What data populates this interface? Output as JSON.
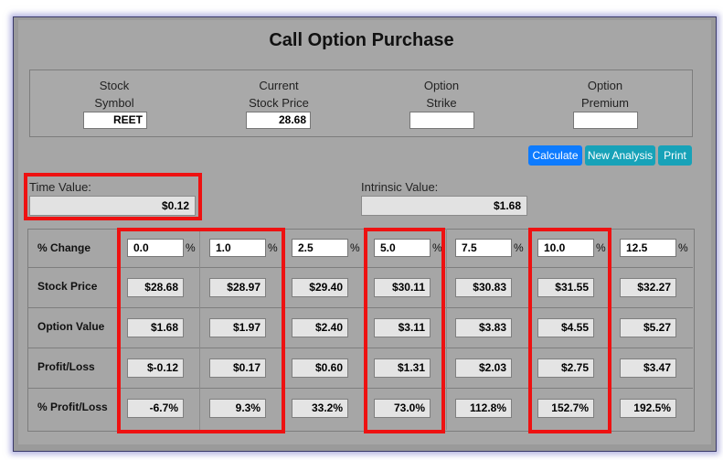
{
  "title": "Call Option Purchase",
  "inputs": {
    "stock_symbol_label_1": "Stock",
    "stock_symbol_label_2": "Symbol",
    "stock_symbol_value": "REET",
    "current_price_label_1": "Current",
    "current_price_label_2": "Stock Price",
    "current_price_value": "28.68",
    "strike_label_1": "Option",
    "strike_label_2": "Strike",
    "strike_value": "",
    "premium_label_1": "Option",
    "premium_label_2": "Premium",
    "premium_value": ""
  },
  "buttons": {
    "calculate": "Calculate",
    "new_analysis": "New Analysis",
    "print": "Print"
  },
  "time_value": {
    "label": "Time Value:",
    "value": "$0.12"
  },
  "intrinsic_value": {
    "label": "Intrinsic Value:",
    "value": "$1.68"
  },
  "table": {
    "row_labels": [
      "% Change",
      "Stock Price",
      "Option Value",
      "Profit/Loss",
      "% Profit/Loss"
    ],
    "pct_sign": "%",
    "pct_change": [
      "0.0",
      "1.0",
      "2.5",
      "5.0",
      "7.5",
      "10.0",
      "12.5"
    ],
    "stock_price": [
      "$28.68",
      "$28.97",
      "$29.40",
      "$30.11",
      "$30.83",
      "$31.55",
      "$32.27"
    ],
    "option_value": [
      "$1.68",
      "$1.97",
      "$2.40",
      "$3.11",
      "$3.83",
      "$4.55",
      "$5.27"
    ],
    "profit_loss": [
      "$-0.12",
      "$0.17",
      "$0.60",
      "$1.31",
      "$2.03",
      "$2.75",
      "$3.47"
    ],
    "pct_profit_loss": [
      "-6.7%",
      "9.3%",
      "33.2%",
      "73.0%",
      "112.8%",
      "152.7%",
      "192.5%"
    ]
  },
  "colors": {
    "highlight": "#ee1111",
    "calculate": "#0d7bff",
    "secondary": "#17a2b8"
  }
}
